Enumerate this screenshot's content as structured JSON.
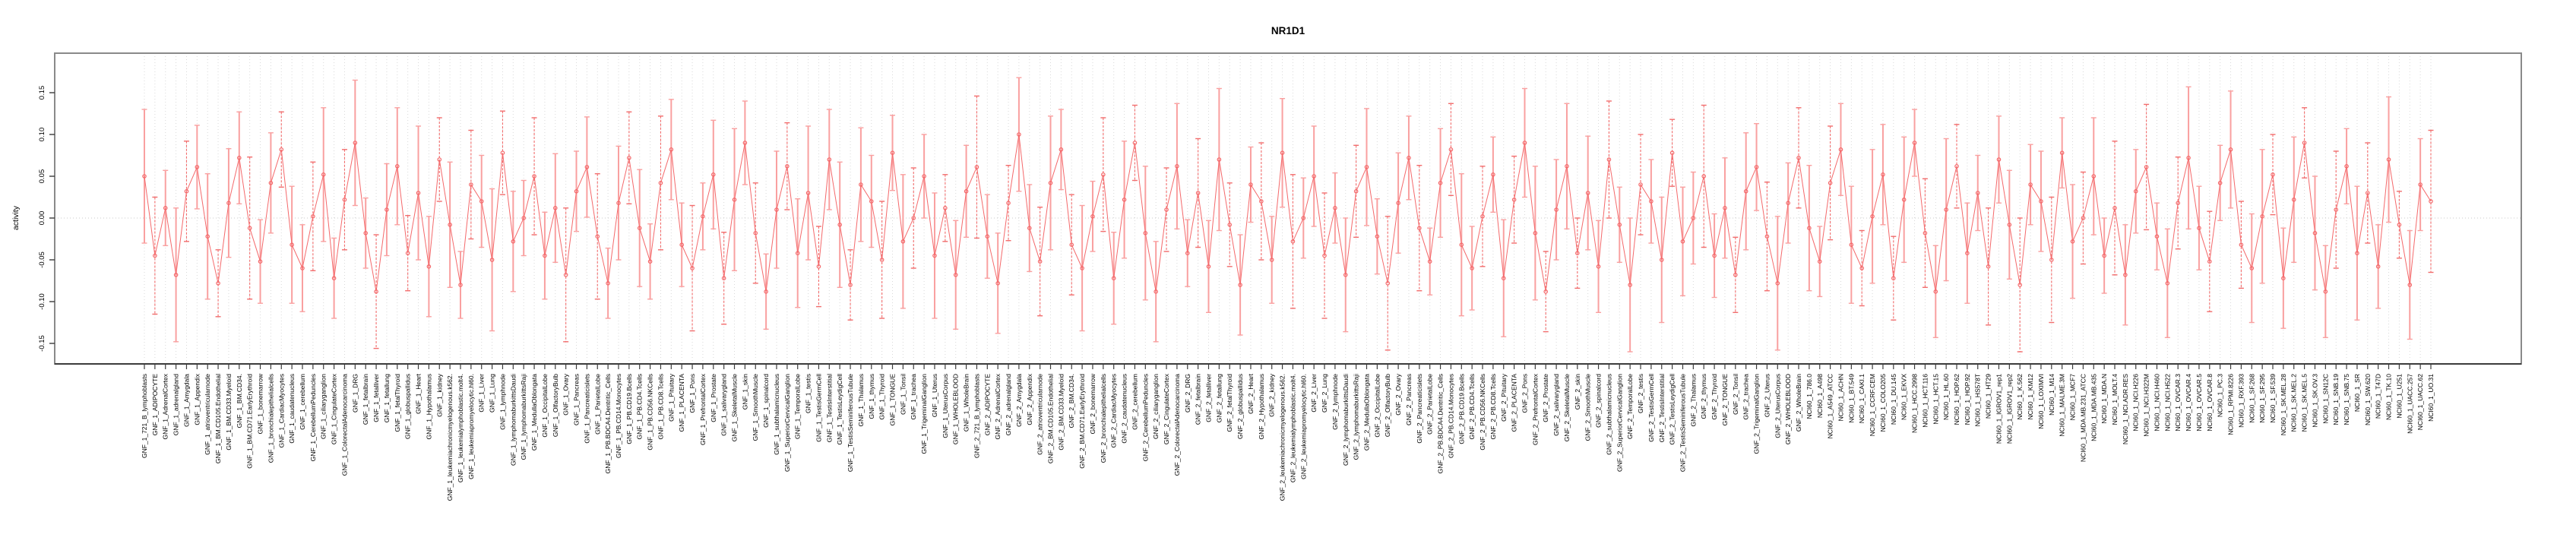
{
  "figure": {
    "background": "#ffffff",
    "frame_color": "#8a8a8a",
    "axis_color": "#3c3c3c",
    "grid_color": "#d9d9d9",
    "zero_line_color": "#c8c8c8"
  },
  "chart_data": {
    "type": "line",
    "title": "NR1D1",
    "xlabel": "",
    "ylabel": "activity",
    "ylim": [
      -0.175,
      0.195
    ],
    "yticks": [
      0.15,
      0.1,
      0.05,
      0.0,
      -0.05,
      -0.1,
      -0.15
    ],
    "ytick_labels": [
      "0.15",
      "0.10",
      "0.05",
      "0.00",
      "-0.05",
      "-0.10",
      "-0.15"
    ],
    "grid": "vertical dotted line at every category; dotted horizontal line at y=0",
    "legend_position": "none",
    "marker": "open-circle",
    "has_error_bars": true,
    "series_color": "#f4696b",
    "error_bar_color": "#f9a0a0",
    "error_bar_alt_color": "#f26d6d",
    "categories": [
      "GNF_1_721_B_lymphoblasts",
      "GNF_1_ADIPOCYTE",
      "GNF_1_AdrenalCortex",
      "GNF_1_adrenalgland",
      "GNF_1_Amygdala",
      "GNF_1_Appendix",
      "GNF_1_atrioventricularnode",
      "GNF_1_BM.CD105.Endothelial",
      "GNF_1_BM.CD33.Myeloid",
      "GNF_1_BM.CD34.",
      "GNF_1_BM.CD71.EarlyErythroid",
      "GNF_1_bonemarrow",
      "GNF_1_bronchialepithelialcells",
      "GNF_1_CardiacMyocytes",
      "GNF_1_caudatenucleus",
      "GNF_1_cerebellum",
      "GNF_1_CerebellumPeduncles",
      "GNF_1_ciliaryganglion",
      "GNF_1_CingulateCortex",
      "GNF_1_ColorectalAdenocarcinoma",
      "GNF_1_DRG",
      "GNF_1_fetalbrain",
      "GNF_1_fetalliver",
      "GNF_1_fetallung",
      "GNF_1_fetalThyroid",
      "GNF_1_globuspallidus",
      "GNF_1_Heart",
      "GNF_1_Hypothalamus",
      "GNF_1_kidney",
      "GNF_1_leukemiachronicmyelogenous.k562.",
      "GNF_1_leukemialymphoblastic.molt4.",
      "GNF_1_leukemiapromyelocytic.hl60.",
      "GNF_1_Liver",
      "GNF_1_Lung",
      "GNF_1_lymphnode",
      "GNF_1_lymphomaburkittsDaudi",
      "GNF_1_lymphomaburkittsRaji",
      "GNF_1_MedullaOblongata",
      "GNF_1_OccipitalLobe",
      "GNF_1_OlfactoryBulb",
      "GNF_1_Ovary",
      "GNF_1_Pancreas",
      "GNF_1_Pancreaticislets",
      "GNF_1_ParietalLobe",
      "GNF_1_PB.BDCA4.Dentritic_Cells",
      "GNF_1_PB.CD14.Monocytes",
      "GNF_1_PB.CD19.Bcells",
      "GNF_1_PB.CD4.Tcells",
      "GNF_1_PB.CD56.NKCells",
      "GNF_1_PB.CD8.Tcells",
      "GNF_1_Pituitary",
      "GNF_1_PLACENTA",
      "GNF_1_Pons",
      "GNF_1_PrefrontalCortex",
      "GNF_1_Prostate",
      "GNF_1_salivarygland",
      "GNF_1_SkeletalMuscle",
      "GNF_1_skin",
      "GNF_1_SmoothMuscle",
      "GNF_1_spinalcord",
      "GNF_1_subthalamicnucleus",
      "GNF_1_SuperiorCervicalGanglion",
      "GNF_1_TemporalLobe",
      "GNF_1_testis",
      "GNF_1_TestisGermCell",
      "GNF_1_TestisInterstitial",
      "GNF_1_TestisLeydigCell",
      "GNF_1_TestisSeminiferousTubule",
      "GNF_1_Thalamus",
      "GNF_1_thymus",
      "GNF_1_Thyroid",
      "GNF_1_TONGUE",
      "GNF_1_Tonsil",
      "GNF_1_trachea",
      "GNF_1_TrigeminalGanglion",
      "GNF_1_Uterus",
      "GNF_1_UterusCorpus",
      "GNF_1_WHOLEBLOOD",
      "GNF_1_WholeBrain",
      "GNF_2_721_B_lymphoblasts",
      "GNF_2_ADIPOCYTE",
      "GNF_2_AdrenalCortex",
      "GNF_2_adrenalgland",
      "GNF_2_Amygdala",
      "GNF_2_Appendix",
      "GNF_2_atrioventricularnode",
      "GNF_2_BM.CD105.Endothelial",
      "GNF_2_BM.CD33.Myeloid",
      "GNF_2_BM.CD34.",
      "GNF_2_BM.CD71.EarlyErythroid",
      "GNF_2_bonemarrow",
      "GNF_2_bronchialepithelialcells",
      "GNF_2_CardiacMyocytes",
      "GNF_2_caudatenucleus",
      "GNF_2_cerebellum",
      "GNF_2_CerebellumPeduncles",
      "GNF_2_ciliaryganglion",
      "GNF_2_CingulateCortex",
      "GNF_2_ColorectalAdenocarcinoma",
      "GNF_2_DRG",
      "GNF_2_fetalbrain",
      "GNF_2_fetalliver",
      "GNF_2_fetallung",
      "GNF_2_fetalThyroid",
      "GNF_2_globuspallidus",
      "GNF_2_Heart",
      "GNF_2_Hypothalamus",
      "GNF_2_kidney",
      "GNF_2_leukemiachronicmyelogenous.k562.",
      "GNF_2_leukemialymphoblastic.molt4.",
      "GNF_2_leukemiapromyelocytic.hl60.",
      "GNF_2_Liver",
      "GNF_2_Lung",
      "GNF_2_lymphnode",
      "GNF_2_lymphomaburkittsDaudi",
      "GNF_2_lymphomaburkittsRaji",
      "GNF_2_MedullaOblongata",
      "GNF_2_OccipitalLobe",
      "GNF_2_OlfactoryBulb",
      "GNF_2_Ovary",
      "GNF_2_Pancreas",
      "GNF_2_Pancreaticislets",
      "GNF_2_ParietalLobe",
      "GNF_2_PB.BDCA4.Dentritic_Cells",
      "GNF_2_PB.CD14.Monocytes",
      "GNF_2_PB.CD19.Bcells",
      "GNF_2_PB.CD4.Tcells",
      "GNF_2_PB.CD56.NKCells",
      "GNF_2_PB.CD8.Tcells",
      "GNF_2_Pituitary",
      "GNF_2_PLACENTA",
      "GNF_2_Pons",
      "GNF_2_PrefrontalCortex",
      "GNF_2_Prostate",
      "GNF_2_salivarygland",
      "GNF_2_SkeletalMuscle",
      "GNF_2_skin",
      "GNF_2_SmoothMuscle",
      "GNF_2_spinalcord",
      "GNF_2_subthalamicnucleus",
      "GNF_2_SuperiorCervicalGanglion",
      "GNF_2_TemporalLobe",
      "GNF_2_testis",
      "GNF_2_TestisGermCell",
      "GNF_2_TestisInterstitial",
      "GNF_2_TestisLeydigCell",
      "GNF_2_TestisSeminiferousTubule",
      "GNF_2_Thalamus",
      "GNF_2_thymus",
      "GNF_2_Thyroid",
      "GNF_2_TONGUE",
      "GNF_2_Tonsil",
      "GNF_2_trachea",
      "GNF_2_TrigeminalGanglion",
      "GNF_2_Uterus",
      "GNF_2_UterusCorpus",
      "GNF_2_WHOLEBLOOD",
      "GNF_2_WholeBrain",
      "NCI60_1_786.0",
      "NCI60_1_A498",
      "NCI60_1_A549_ATCC",
      "NCI60_1_ACHN",
      "NCI60_1_BT.549",
      "NCI60_1_CAKI.1",
      "NCI60_1_CCRF.CEM",
      "NCI60_1_COLO205",
      "NCI60_1_DU.145",
      "NCI60_1_EKVX",
      "NCI60_1_HCC.2998",
      "NCI60_1_HCT.116",
      "NCI60_1_HCT.15",
      "NCI60_1_HL.60",
      "NCI60_1_HOP.62",
      "NCI60_1_HOP.92",
      "NCI60_1_HS578T",
      "NCI60_1_HT29",
      "NCI60_1_IGROV1_rep1",
      "NCI60_1_IGROV1_rep2",
      "NCI60_1_K.562",
      "NCI60_1_KM12",
      "NCI60_1_LOXIMVI",
      "NCI60_1_M14",
      "NCI60_1_MALME.3M",
      "NCI60_1_MCF7",
      "NCI60_1_MDA.MB.231_ATCC",
      "NCI60_1_MDA.MB.435",
      "NCI60_1_MDA.N",
      "NCI60_1_MOLT.4",
      "NCI60_1_NCI.ADR.RES",
      "NCI60_1_NCI.H226",
      "NCI60_1_NCI.H322M",
      "NCI60_1_NCI.H460",
      "NCI60_1_NCI.H522",
      "NCI60_1_OVCAR.3",
      "NCI60_1_OVCAR.4",
      "NCI60_1_OVCAR.5",
      "NCI60_1_OVCAR.8",
      "NCI60_1_PC.3",
      "NCI60_1_RPMI.8226",
      "NCI60_1_RXF.393",
      "NCI60_1_SF.268",
      "NCI60_1_SF.295",
      "NCI60_1_SF.539",
      "NCI60_1_SK.MEL.28",
      "NCI60_1_SK.MEL.2",
      "NCI60_1_SK.MEL.5",
      "NCI60_1_SK.OV.3",
      "NCI60_1_SN12C",
      "NCI60_1_SNB.19",
      "NCI60_1_SNB.75",
      "NCI60_1_SR",
      "NCI60_1_SW.620",
      "NCI60_1_T47D",
      "NCI60_1_TK.10",
      "NCI60_1_U251",
      "NCI60_1_UACC.257",
      "NCI60_1_UACC.62",
      "NCI60_1_UO.31"
    ],
    "values": [
      0.05,
      -0.045,
      0.012,
      -0.068,
      0.032,
      0.061,
      -0.022,
      -0.078,
      0.018,
      0.072,
      -0.012,
      -0.052,
      0.042,
      0.082,
      -0.032,
      -0.06,
      0.002,
      0.052,
      -0.072,
      0.022,
      0.09,
      -0.018,
      -0.088,
      0.01,
      0.062,
      -0.042,
      0.03,
      -0.058,
      0.07,
      -0.008,
      -0.08,
      0.04,
      0.02,
      -0.05,
      0.078,
      -0.028,
      0.0,
      0.05,
      -0.045,
      0.012,
      -0.068,
      0.032,
      0.061,
      -0.022,
      -0.078,
      0.018,
      0.072,
      -0.012,
      -0.052,
      0.042,
      0.082,
      -0.032,
      -0.06,
      0.002,
      0.052,
      -0.072,
      0.022,
      0.09,
      -0.018,
      -0.088,
      0.01,
      0.062,
      -0.042,
      0.03,
      -0.058,
      0.07,
      -0.008,
      -0.08,
      0.04,
      0.02,
      -0.05,
      0.078,
      -0.028,
      0.0,
      0.05,
      -0.045,
      0.012,
      -0.068,
      0.032,
      0.061,
      -0.022,
      -0.078,
      0.018,
      0.1,
      -0.012,
      -0.052,
      0.042,
      0.082,
      -0.032,
      -0.06,
      0.002,
      0.052,
      -0.072,
      0.022,
      0.09,
      -0.018,
      -0.088,
      0.01,
      0.062,
      -0.042,
      0.03,
      -0.058,
      0.07,
      -0.008,
      -0.08,
      0.04,
      0.02,
      -0.05,
      0.078,
      -0.028,
      0.0,
      0.05,
      -0.045,
      0.012,
      -0.068,
      0.032,
      0.061,
      -0.022,
      -0.078,
      0.018,
      0.072,
      -0.012,
      -0.052,
      0.042,
      0.082,
      -0.032,
      -0.06,
      0.002,
      0.052,
      -0.072,
      0.022,
      0.09,
      -0.018,
      -0.088,
      0.01,
      0.062,
      -0.042,
      0.03,
      -0.058,
      0.07,
      -0.008,
      -0.08,
      0.04,
      0.02,
      -0.05,
      0.078,
      -0.028,
      0.0,
      0.05,
      -0.045,
      0.012,
      -0.068,
      0.032,
      0.061,
      -0.022,
      -0.078,
      0.018,
      0.072,
      -0.012,
      -0.052,
      0.042,
      0.082,
      -0.032,
      -0.06,
      0.002,
      0.052,
      -0.072,
      0.022,
      0.09,
      -0.018,
      -0.088,
      0.01,
      0.062,
      -0.042,
      0.03,
      -0.058,
      0.07,
      -0.008,
      -0.08,
      0.04,
      0.02,
      -0.05,
      0.078,
      -0.028,
      0.0,
      0.05,
      -0.045,
      0.012,
      -0.068,
      0.032,
      0.061,
      -0.022,
      -0.078,
      0.018,
      0.072,
      -0.012,
      -0.052,
      0.042,
      0.082,
      -0.032,
      -0.06,
      0.002,
      0.052,
      -0.072,
      0.022,
      0.09,
      -0.018,
      -0.088,
      0.01,
      0.062,
      -0.042,
      0.03,
      -0.058,
      0.07,
      -0.008,
      -0.08,
      0.04,
      0.02
    ],
    "errors": [
      0.08,
      0.07,
      0.045,
      0.08,
      0.06,
      0.05,
      0.075,
      0.04,
      0.065,
      0.055,
      0.085,
      0.05,
      0.06,
      0.045,
      0.07,
      0.052,
      0.065,
      0.08,
      0.048,
      0.06,
      0.075,
      0.042,
      0.068,
      0.055,
      0.07,
      0.045,
      0.08,
      0.06,
      0.05,
      0.075,
      0.04,
      0.065,
      0.055,
      0.085,
      0.05,
      0.06,
      0.045,
      0.07,
      0.052,
      0.065,
      0.08,
      0.048,
      0.06,
      0.075,
      0.042,
      0.068,
      0.055,
      0.07,
      0.045,
      0.08,
      0.06,
      0.05,
      0.075,
      0.04,
      0.065,
      0.055,
      0.085,
      0.05,
      0.06,
      0.045,
      0.07,
      0.052,
      0.065,
      0.08,
      0.048,
      0.06,
      0.075,
      0.042,
      0.068,
      0.055,
      0.07,
      0.045,
      0.08,
      0.06,
      0.05,
      0.075,
      0.04,
      0.065,
      0.055,
      0.085,
      0.05,
      0.06,
      0.045,
      0.068,
      0.052,
      0.065,
      0.08,
      0.048,
      0.06,
      0.075,
      0.042,
      0.068,
      0.055,
      0.07,
      0.045,
      0.08,
      0.06,
      0.05,
      0.075,
      0.04,
      0.065,
      0.055,
      0.085,
      0.05,
      0.06,
      0.045,
      0.07,
      0.052,
      0.065,
      0.08,
      0.048,
      0.06,
      0.075,
      0.042,
      0.068,
      0.055,
      0.07,
      0.045,
      0.08,
      0.06,
      0.05,
      0.075,
      0.04,
      0.065,
      0.055,
      0.085,
      0.05,
      0.06,
      0.045,
      0.07,
      0.052,
      0.065,
      0.08,
      0.048,
      0.06,
      0.075,
      0.042,
      0.068,
      0.055,
      0.07,
      0.045,
      0.08,
      0.06,
      0.05,
      0.075,
      0.04,
      0.065,
      0.055,
      0.085,
      0.05,
      0.06,
      0.045,
      0.07,
      0.052,
      0.065,
      0.08,
      0.048,
      0.06,
      0.075,
      0.042,
      0.068,
      0.055,
      0.07,
      0.045,
      0.08,
      0.06,
      0.05,
      0.075,
      0.04,
      0.065,
      0.055,
      0.085,
      0.05,
      0.06,
      0.045,
      0.07,
      0.052,
      0.065,
      0.08,
      0.048,
      0.06,
      0.075,
      0.042,
      0.068,
      0.055,
      0.07,
      0.045,
      0.08,
      0.06,
      0.05,
      0.075,
      0.04,
      0.065,
      0.055,
      0.085,
      0.05,
      0.06,
      0.045,
      0.07,
      0.052,
      0.065,
      0.08,
      0.048,
      0.06,
      0.075,
      0.042,
      0.068,
      0.055,
      0.07,
      0.045,
      0.08,
      0.06,
      0.05,
      0.075,
      0.04,
      0.065,
      0.055,
      0.085
    ]
  }
}
